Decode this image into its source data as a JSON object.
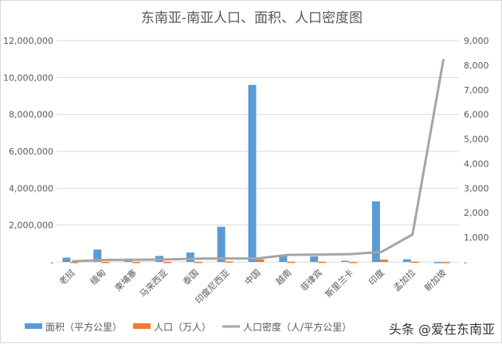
{
  "chart_data": {
    "type": "bar+line",
    "title": "东南亚-南亚人口、面积、人口密度图",
    "categories": [
      "老挝",
      "缅甸",
      "柬埔寨",
      "马来西亚",
      "泰国",
      "印度尼西亚",
      "中国",
      "越南",
      "菲律宾",
      "斯里兰卡",
      "印度",
      "孟加拉",
      "新加坡"
    ],
    "series": [
      {
        "name": "面积（平方公里）",
        "type": "bar",
        "axis": "left",
        "color": "#5b9bd5",
        "values": [
          236800,
          676578,
          181035,
          330000,
          513000,
          1910000,
          9600000,
          330000,
          300000,
          65610,
          3287000,
          147570,
          724
        ]
      },
      {
        "name": "人口（万人）",
        "type": "bar",
        "axis": "left",
        "color": "#ed7d31",
        "values": [
          700,
          5400,
          1600,
          3200,
          6900,
          26400,
          140000,
          9600,
          10800,
          2200,
          133000,
          16400,
          570
        ]
      },
      {
        "name": "人口密度（人/平方公里）",
        "type": "line",
        "axis": "right",
        "color": "#a5a5a5",
        "values": [
          30,
          80,
          90,
          100,
          135,
          140,
          145,
          290,
          300,
          320,
          410,
          1120,
          8250
        ]
      }
    ],
    "y_left": {
      "range": [
        0,
        12000000
      ],
      "ticks": [
        "-",
        "2,000,000",
        "4,000,000",
        "6,000,000",
        "8,000,000",
        "10,000,000",
        "12,000,000"
      ]
    },
    "y_right": {
      "range": [
        0,
        9000
      ],
      "ticks": [
        "-",
        "1,000",
        "2,000",
        "3,000",
        "4,000",
        "5,000",
        "6,000",
        "7,000",
        "8,000",
        "9,000"
      ]
    },
    "grid": true,
    "legend": "bottom"
  },
  "watermark": "头条 @爱在东南亚"
}
